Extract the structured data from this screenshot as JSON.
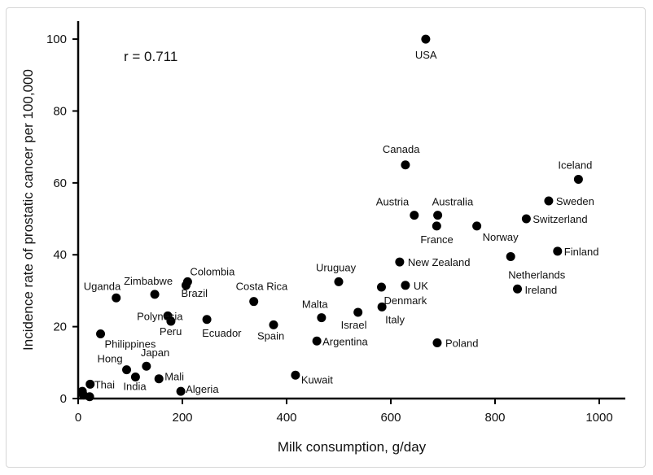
{
  "chart_data": {
    "type": "scatter",
    "xlabel": "Milk consumption, g/day",
    "ylabel": "Incidence rate of prostatic cancer per 100,000",
    "annotation": "r = 0.711",
    "xlim": [
      0,
      1050
    ],
    "ylim": [
      0,
      105
    ],
    "xticks": [
      0,
      200,
      400,
      600,
      800,
      1000
    ],
    "yticks": [
      0,
      20,
      40,
      60,
      80,
      100
    ],
    "grid": false,
    "marker_color": "#000000",
    "points": [
      {
        "label": "USA",
        "x": 667,
        "y": 100
      },
      {
        "label": "Canada",
        "x": 628,
        "y": 65
      },
      {
        "label": "Iceland",
        "x": 960,
        "y": 61
      },
      {
        "label": "Sweden",
        "x": 903,
        "y": 55
      },
      {
        "label": "Austria",
        "x": 645,
        "y": 51
      },
      {
        "label": "Australia",
        "x": 690,
        "y": 51
      },
      {
        "label": "Switzerland",
        "x": 860,
        "y": 50
      },
      {
        "label": "France",
        "x": 688,
        "y": 48
      },
      {
        "label": "Norway",
        "x": 765,
        "y": 48
      },
      {
        "label": "Finland",
        "x": 920,
        "y": 41
      },
      {
        "label": "Netherlands",
        "x": 830,
        "y": 39.5
      },
      {
        "label": "New Zealand",
        "x": 617,
        "y": 38
      },
      {
        "label": "Uruguay",
        "x": 500,
        "y": 32.5
      },
      {
        "label": "UK",
        "x": 628,
        "y": 31.5
      },
      {
        "label": "Denmark",
        "x": 582,
        "y": 31
      },
      {
        "label": "Ireland",
        "x": 843,
        "y": 30.5
      },
      {
        "label": "Colombia",
        "x": 210,
        "y": 32.5
      },
      {
        "label": "Zimbabwe",
        "x": 147,
        "y": 29
      },
      {
        "label": "Brazil",
        "x": 207,
        "y": 31.5
      },
      {
        "label": "Uganda",
        "x": 73,
        "y": 28
      },
      {
        "label": "Costa Rica",
        "x": 337,
        "y": 27
      },
      {
        "label": "Italy",
        "x": 583,
        "y": 25.5
      },
      {
        "label": "Israel",
        "x": 537,
        "y": 24
      },
      {
        "label": "Malta",
        "x": 467,
        "y": 22.5
      },
      {
        "label": "Polynesia",
        "x": 172,
        "y": 23
      },
      {
        "label": "Peru",
        "x": 178,
        "y": 21.5
      },
      {
        "label": "Ecuador",
        "x": 247,
        "y": 22
      },
      {
        "label": "Spain",
        "x": 375,
        "y": 20.5
      },
      {
        "label": "Philippines",
        "x": 43,
        "y": 18
      },
      {
        "label": "Argentina",
        "x": 458,
        "y": 16
      },
      {
        "label": "Poland",
        "x": 689,
        "y": 15.5
      },
      {
        "label": "Japan",
        "x": 131,
        "y": 9
      },
      {
        "label": "Hong",
        "x": 93,
        "y": 8
      },
      {
        "label": "India",
        "x": 110,
        "y": 6
      },
      {
        "label": "Mali",
        "x": 155,
        "y": 5.5
      },
      {
        "label": "Kuwait",
        "x": 417,
        "y": 6.5
      },
      {
        "label": "Thai",
        "x": 23,
        "y": 4
      },
      {
        "label": "Algeria",
        "x": 197,
        "y": 2
      },
      {
        "label": "",
        "x": 8,
        "y": 2
      },
      {
        "label": "",
        "x": 10,
        "y": 1
      },
      {
        "label": "",
        "x": 22,
        "y": 0.5
      }
    ]
  }
}
